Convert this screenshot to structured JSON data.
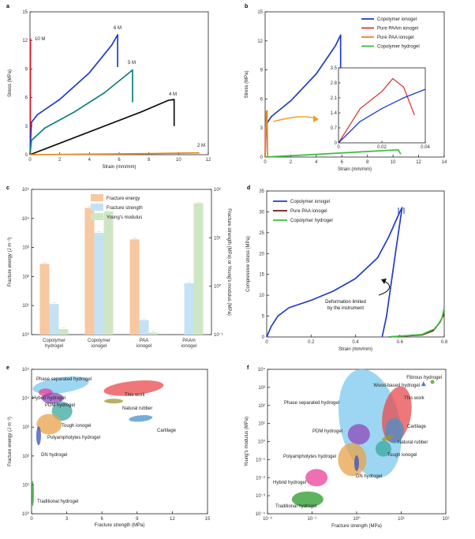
{
  "chart_data": [
    {
      "panel": "a",
      "type": "line",
      "xlabel": "Strain (mm/mm)",
      "ylabel": "Stress (MPa)",
      "xlim": [
        0,
        12
      ],
      "ylim": [
        0,
        15
      ],
      "xticks": [
        "0",
        "2",
        "4",
        "6",
        "8",
        "10",
        "12"
      ],
      "yticks": [
        "0",
        "3",
        "6",
        "9",
        "12",
        "15"
      ],
      "series": [
        {
          "name": "10 M",
          "color": "#d11a2a",
          "points": [
            [
              0.02,
              0
            ],
            [
              0.03,
              12.2
            ]
          ]
        },
        {
          "name": "6 M",
          "color": "#1f3cc8",
          "points": [
            [
              0,
              0
            ],
            [
              0.1,
              3.4
            ],
            [
              0.5,
              4.2
            ],
            [
              2,
              5.8
            ],
            [
              4,
              8.6
            ],
            [
              5.5,
              11.5
            ],
            [
              5.9,
              12.6
            ],
            [
              5.9,
              9.2
            ]
          ]
        },
        {
          "name": "5 M",
          "color": "#0e7f7f",
          "points": [
            [
              0,
              0
            ],
            [
              0.1,
              1.5
            ],
            [
              1,
              2.8
            ],
            [
              3,
              4.5
            ],
            [
              5,
              6.5
            ],
            [
              6.6,
              8.5
            ],
            [
              6.9,
              8.9
            ],
            [
              6.9,
              5.5
            ]
          ]
        },
        {
          "name": "4 M",
          "color": "#111111",
          "points": [
            [
              0,
              0
            ],
            [
              1,
              0.6
            ],
            [
              3,
              1.8
            ],
            [
              5,
              3.0
            ],
            [
              7.5,
              4.5
            ],
            [
              9.3,
              5.7
            ],
            [
              9.7,
              5.8
            ],
            [
              9.7,
              3.0
            ]
          ]
        },
        {
          "name": "2 M",
          "color": "#e58a1f",
          "points": [
            [
              0,
              0
            ],
            [
              4,
              0.05
            ],
            [
              8,
              0.12
            ],
            [
              11.4,
              0.2
            ]
          ]
        }
      ],
      "labels": [
        "10 M",
        "6 M",
        "5 M",
        "4 M",
        "2 M"
      ]
    },
    {
      "panel": "b",
      "type": "line",
      "xlabel": "Strain (mm/mm)",
      "ylabel": "Stress (MPa)",
      "xlim": [
        0,
        14
      ],
      "ylim": [
        0,
        15
      ],
      "xticks": [
        "0",
        "2",
        "4",
        "6",
        "8",
        "10",
        "12",
        "14"
      ],
      "yticks": [
        "0",
        "3",
        "6",
        "9",
        "12",
        "15"
      ],
      "legend": [
        "Copolymer ionogel",
        "Pure PAAm ionogel",
        "Pure PAA ionogel",
        "Copolymer hydrogel"
      ],
      "series": [
        {
          "name": "Copolymer ionogel",
          "color": "#1f3cc8",
          "points": [
            [
              0,
              0
            ],
            [
              0.1,
              3.4
            ],
            [
              0.5,
              4.2
            ],
            [
              2,
              5.8
            ],
            [
              4,
              8.6
            ],
            [
              5.5,
              11.5
            ],
            [
              5.9,
              12.6
            ],
            [
              5.9,
              9.2
            ]
          ]
        },
        {
          "name": "Pure PAAm ionogel",
          "color": "#d8383f",
          "points": [
            [
              0,
              0
            ],
            [
              0.02,
              3
            ],
            [
              0.035,
              2
            ]
          ]
        },
        {
          "name": "Pure PAA ionogel",
          "color": "#e58a1f",
          "points": [
            [
              0,
              0
            ],
            [
              0.1,
              4.7
            ],
            [
              0.15,
              4.8
            ],
            [
              0.2,
              0
            ]
          ]
        },
        {
          "name": "Copolymer hydrogel",
          "color": "#3cbb3c",
          "points": [
            [
              0,
              0
            ],
            [
              3,
              0.2
            ],
            [
              7,
              0.5
            ],
            [
              10.4,
              0.75
            ],
            [
              10.6,
              0.3
            ]
          ]
        }
      ],
      "inset": {
        "xlim": [
          0,
          0.04
        ],
        "ylim": [
          0,
          3.5
        ],
        "xticks": [
          "0",
          "0.02",
          "0.04"
        ],
        "yticks": [
          "0",
          "0.7",
          "1.4",
          "2.1",
          "2.8",
          "3.5"
        ],
        "series": [
          {
            "name": "Pure PAAm ionogel",
            "color": "#d8383f",
            "points": [
              [
                0,
                0
              ],
              [
                0.005,
                0.8
              ],
              [
                0.01,
                1.6
              ],
              [
                0.02,
                2.4
              ],
              [
                0.025,
                3.0
              ],
              [
                0.03,
                2.6
              ],
              [
                0.035,
                1.3
              ]
            ]
          },
          {
            "name": "Copolymer ionogel",
            "color": "#1f3cc8",
            "points": [
              [
                0,
                0
              ],
              [
                0.01,
                1.0
              ],
              [
                0.02,
                1.6
              ],
              [
                0.03,
                2.1
              ],
              [
                0.04,
                2.5
              ]
            ]
          }
        ]
      }
    },
    {
      "panel": "c",
      "type": "bar",
      "categories": [
        "Copolymer\nhydrogel",
        "Copolymer\nionogel",
        "PAA\nionogel",
        "PAAm\nionogel"
      ],
      "ylabel": "Fracture energy (J m⁻²)",
      "y2label": "Fracture strength (MPa) or Young's modulus (MPa)",
      "yticks": [
        "10⁰",
        "10¹",
        "10²",
        "10³",
        "10⁴",
        "10⁵"
      ],
      "y2ticks": [
        "10⁻¹",
        "10⁰",
        "10¹",
        "10²"
      ],
      "ylim_log": [
        0,
        5
      ],
      "y2lim_log": [
        -1,
        2
      ],
      "legend": [
        "Fracture energy",
        "Fracture strength",
        "Young's modulus"
      ],
      "series": [
        {
          "name": "Fracture energy",
          "color": "#f8c8a0",
          "axis": "left",
          "values": [
            270,
            23000,
            1900,
            null
          ]
        },
        {
          "name": "Fracture strength",
          "color": "#c4e2f4",
          "axis": "right",
          "values": [
            0.43,
            12.6,
            0.2,
            1.15
          ]
        },
        {
          "name": "Young's modulus",
          "color": "#cfe6c4",
          "axis": "right",
          "values": [
            0.13,
            35,
            0.11,
            52
          ]
        }
      ]
    },
    {
      "panel": "d",
      "type": "line",
      "xlabel": "Strain (mm/mm)",
      "ylabel": "Compressive stress (MPa)",
      "xlim": [
        0,
        0.8
      ],
      "ylim": [
        0,
        35
      ],
      "xticks": [
        "0",
        "0.2",
        "0.4",
        "0.6",
        "0.8"
      ],
      "yticks": [
        "0",
        "5",
        "10",
        "15",
        "20",
        "25",
        "30",
        "35"
      ],
      "legend": [
        "Copolymer ionogel",
        "Pure PAA ionogel",
        "Copolymer hydrogel"
      ],
      "annotation": "Deformation limited\nby the instrument",
      "series": [
        {
          "name": "Copolymer ionogel",
          "color": "#1f3cc8",
          "points": [
            [
              0,
              0
            ],
            [
              0.02,
              2.5
            ],
            [
              0.05,
              5
            ],
            [
              0.1,
              7
            ],
            [
              0.2,
              8.8
            ],
            [
              0.3,
              11
            ],
            [
              0.4,
              14
            ],
            [
              0.5,
              19
            ],
            [
              0.55,
              24
            ],
            [
              0.6,
              30
            ],
            [
              0.61,
              31
            ],
            [
              0.58,
              20
            ],
            [
              0.54,
              5
            ],
            [
              0.52,
              0
            ]
          ]
        },
        {
          "name": "Pure PAA ionogel",
          "color": "#7a0f14",
          "points": [
            [
              0.55,
              0
            ],
            [
              0.7,
              0.5
            ],
            [
              0.75,
              1.5
            ],
            [
              0.78,
              3.5
            ],
            [
              0.8,
              5.5
            ]
          ]
        },
        {
          "name": "Copolymer hydrogel",
          "color": "#3cbb3c",
          "points": [
            [
              0.55,
              0
            ],
            [
              0.7,
              0.6
            ],
            [
              0.76,
              2
            ],
            [
              0.79,
              4.5
            ],
            [
              0.8,
              7
            ]
          ]
        }
      ]
    },
    {
      "panel": "e",
      "type": "scatter",
      "xlabel": "Fracture strength (MPa)",
      "ylabel": "Fracture energy (J m⁻²)",
      "xlim": [
        0,
        15
      ],
      "ylim_log": [
        0,
        5
      ],
      "xticks": [
        "0",
        "3",
        "6",
        "9",
        "12",
        "15"
      ],
      "yticks": [
        "10⁰",
        "10¹",
        "10²",
        "10³",
        "10⁴",
        "10⁵"
      ],
      "regions": [
        {
          "name": "Phase separated hydrogel",
          "color": "#7cc8ee",
          "x": 2.5,
          "logy": 4.45
        },
        {
          "name": "This work",
          "color": "#e84a4e",
          "x": 8.7,
          "logy": 4.35
        },
        {
          "name": "Hybrid hydrogel",
          "color": "#e93f97",
          "x": 1.2,
          "logy": 4.2
        },
        {
          "name": "PDM hydrogel",
          "color": "#8e48b8",
          "x": 1.8,
          "logy": 4.0
        },
        {
          "name": "Natural rubber",
          "color": "#a09530",
          "x": 7.0,
          "logy": 3.9
        },
        {
          "name": "Tough ionogel",
          "color": "#3aa8a0",
          "x": 2.6,
          "logy": 3.55
        },
        {
          "name": "Cartilage",
          "color": "#4a90c8",
          "x": 9.3,
          "logy": 3.3
        },
        {
          "name": "Polyampholytes hydrogel",
          "color": "#e8a24a",
          "x": 1.5,
          "logy": 3.1
        },
        {
          "name": "DN hydrogel",
          "color": "#3a4ec0",
          "x": 0.6,
          "logy": 2.7
        },
        {
          "name": "Traditional hydrogel",
          "color": "#2a9a2a",
          "x": 0.1,
          "logy": 0.7
        }
      ]
    },
    {
      "panel": "f",
      "type": "scatter",
      "xlabel": "Fracture strength (MPa)",
      "ylabel": "Young's modulus (MPa)",
      "xlim_log": [
        -2,
        2
      ],
      "ylim_log": [
        -4,
        4
      ],
      "xticks": [
        "10⁻²",
        "10⁻¹",
        "10⁰",
        "10¹",
        "10²"
      ],
      "yticks": [
        "10⁻⁴",
        "10⁻³",
        "10⁻²",
        "10⁻¹",
        "10⁰",
        "10¹",
        "10²",
        "10³",
        "10⁴"
      ],
      "regions": [
        {
          "name": "Fibrous hydrogel",
          "color": "#6cb84a",
          "logx": 1.7,
          "logy": 3.3
        },
        {
          "name": "Wood-based hydrogel",
          "color": "#5a7ab8",
          "logx": 1.5,
          "logy": 3.2
        },
        {
          "name": "Phase separated hydrogel",
          "color": "#7cc8ee",
          "logx": 0.3,
          "logy": 1.0
        },
        {
          "name": "This work",
          "color": "#e84a4e",
          "logx": 0.9,
          "logy": 1.5
        },
        {
          "name": "PDM hydrogel",
          "color": "#8e48b8",
          "logx": 0.05,
          "logy": 0.4
        },
        {
          "name": "Cartilage",
          "color": "#4a90c8",
          "logx": 0.85,
          "logy": 0.6
        },
        {
          "name": "Natural rubber",
          "color": "#a09530",
          "logx": 0.7,
          "logy": 0.2
        },
        {
          "name": "Tough ionogel",
          "color": "#3aa8a0",
          "logx": 0.6,
          "logy": -0.4
        },
        {
          "name": "Polyampholytes hydrogel",
          "color": "#e8a24a",
          "logx": -0.1,
          "logy": -1.0
        },
        {
          "name": "DN hydrogel",
          "color": "#3a4ec0",
          "logx": 0.0,
          "logy": -1.2
        },
        {
          "name": "Hybrid hydrogel",
          "color": "#e93f97",
          "logx": -0.9,
          "logy": -2.0
        },
        {
          "name": "Traditional hydrogel",
          "color": "#2a9a2a",
          "logx": -1.1,
          "logy": -3.2
        }
      ]
    }
  ]
}
